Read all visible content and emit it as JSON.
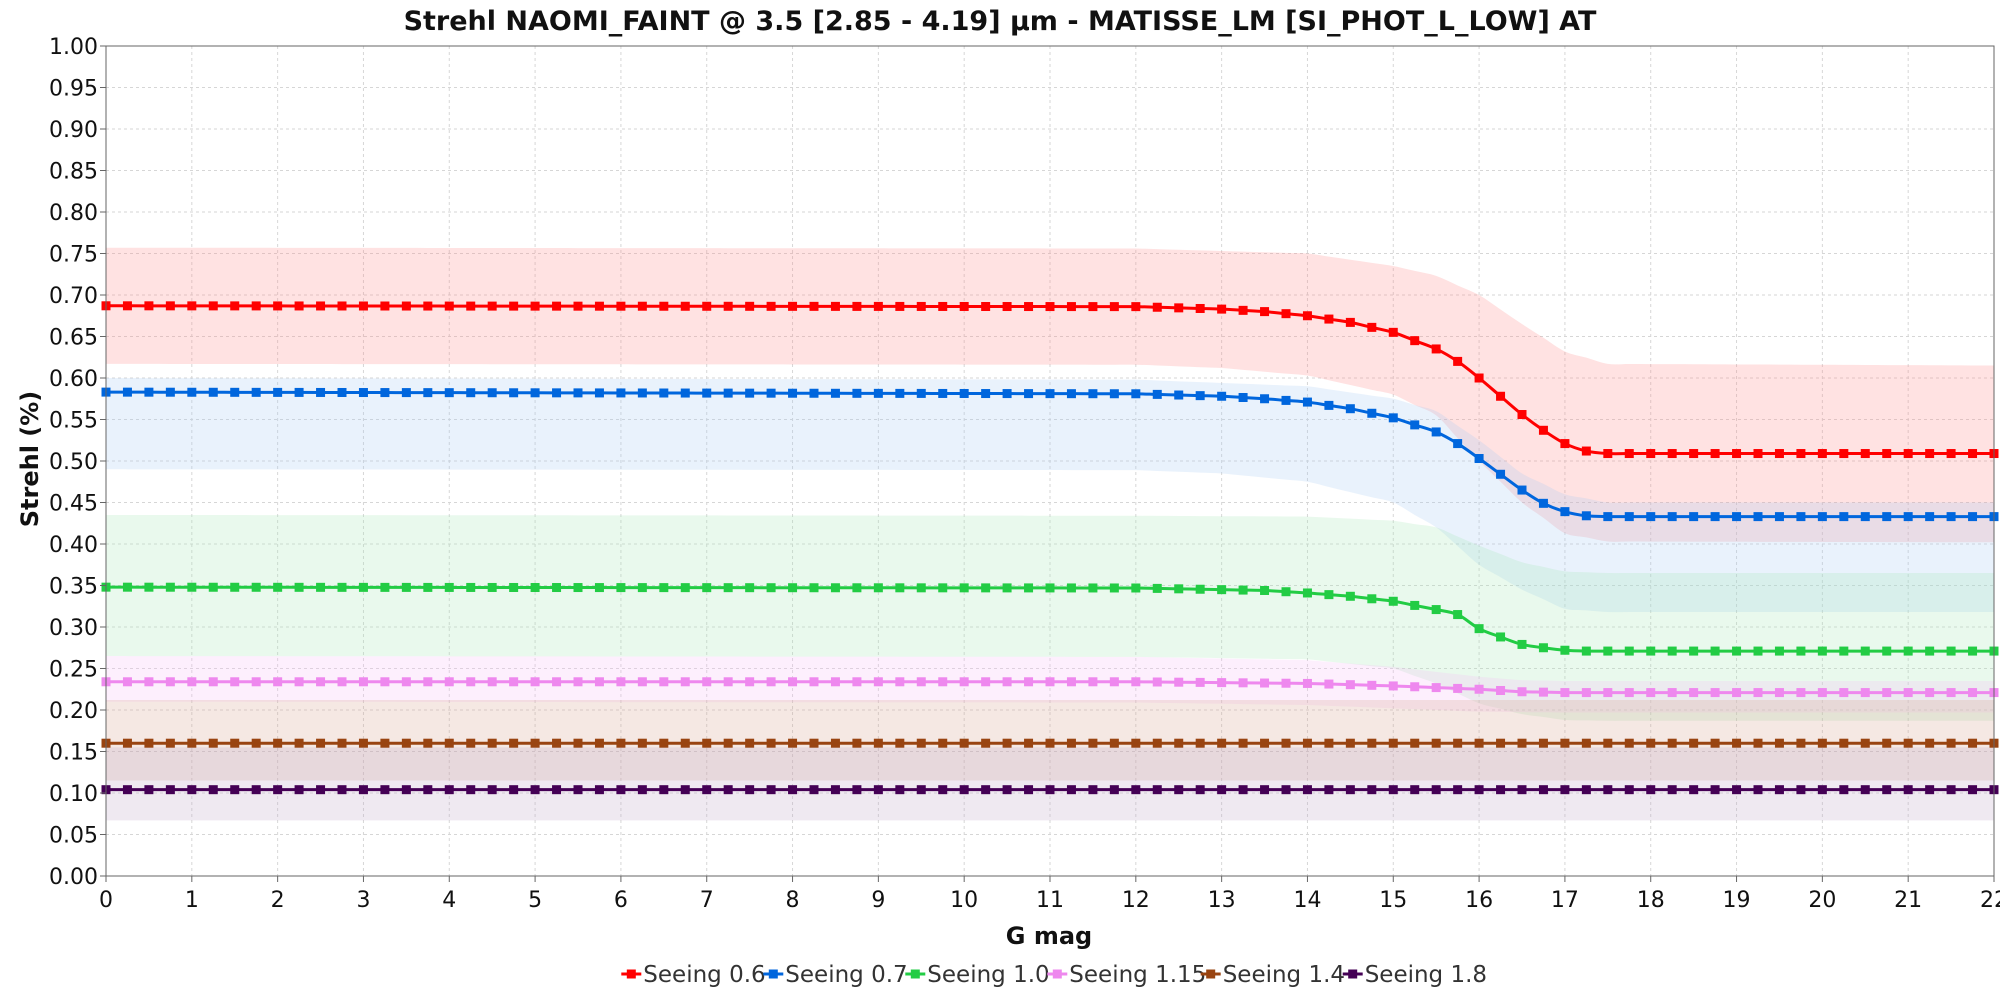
{
  "chart_data": {
    "type": "line",
    "title": "Strehl NAOMI_FAINT @ 3.5 [2.85 - 4.19] µm - MATISSE_LM [SI_PHOT_L_LOW] AT",
    "xlabel": "G mag",
    "ylabel": "Strehl (%)",
    "xlim": [
      0,
      22
    ],
    "ylim": [
      0,
      1
    ],
    "x_ticks": [
      "0",
      "1",
      "2",
      "3",
      "4",
      "5",
      "6",
      "7",
      "8",
      "9",
      "10",
      "11",
      "12",
      "13",
      "14",
      "15",
      "16",
      "17",
      "18",
      "19",
      "20",
      "21",
      "22"
    ],
    "y_ticks": [
      "0.00",
      "0.05",
      "0.10",
      "0.15",
      "0.20",
      "0.25",
      "0.30",
      "0.35",
      "0.40",
      "0.45",
      "0.50",
      "0.55",
      "0.60",
      "0.65",
      "0.70",
      "0.75",
      "0.80",
      "0.85",
      "0.90",
      "0.95",
      "1.00"
    ],
    "grid": true,
    "legend_position": "bottom",
    "marker_step": 0.25,
    "series": [
      {
        "name": "Seeing 0.6",
        "color": "#ff0000",
        "band_color": "#ff8a8a",
        "points": [
          [
            0,
            0.687
          ],
          [
            12,
            0.686
          ],
          [
            13,
            0.683
          ],
          [
            13.5,
            0.68
          ],
          [
            14,
            0.675
          ],
          [
            14.5,
            0.667
          ],
          [
            15,
            0.655
          ],
          [
            15.5,
            0.635
          ],
          [
            15.75,
            0.62
          ],
          [
            16,
            0.6
          ],
          [
            16.25,
            0.578
          ],
          [
            16.5,
            0.556
          ],
          [
            16.75,
            0.537
          ],
          [
            17,
            0.521
          ],
          [
            17.25,
            0.512
          ],
          [
            17.5,
            0.509
          ],
          [
            22,
            0.509
          ]
        ],
        "band_upper": [
          [
            0,
            0.757
          ],
          [
            12,
            0.756
          ],
          [
            14,
            0.75
          ],
          [
            15,
            0.735
          ],
          [
            15.5,
            0.723
          ],
          [
            16,
            0.7
          ],
          [
            16.5,
            0.665
          ],
          [
            17,
            0.632
          ],
          [
            17.5,
            0.617
          ],
          [
            22,
            0.615
          ]
        ],
        "band_lower": [
          [
            0,
            0.617
          ],
          [
            12,
            0.616
          ],
          [
            13,
            0.612
          ],
          [
            14,
            0.603
          ],
          [
            15,
            0.58
          ],
          [
            15.5,
            0.555
          ],
          [
            16,
            0.5
          ],
          [
            16.5,
            0.45
          ],
          [
            17,
            0.413
          ],
          [
            17.5,
            0.403
          ],
          [
            22,
            0.402
          ]
        ]
      },
      {
        "name": "Seeing 0.7",
        "color": "#0066dd",
        "band_color": "#a8cdf5",
        "points": [
          [
            0,
            0.583
          ],
          [
            12,
            0.581
          ],
          [
            13,
            0.578
          ],
          [
            13.5,
            0.575
          ],
          [
            14,
            0.571
          ],
          [
            14.5,
            0.563
          ],
          [
            15,
            0.552
          ],
          [
            15.5,
            0.535
          ],
          [
            15.75,
            0.521
          ],
          [
            16,
            0.503
          ],
          [
            16.25,
            0.484
          ],
          [
            16.5,
            0.465
          ],
          [
            16.75,
            0.449
          ],
          [
            17,
            0.439
          ],
          [
            17.25,
            0.434
          ],
          [
            17.5,
            0.433
          ],
          [
            22,
            0.433
          ]
        ],
        "band_upper": [
          [
            0,
            0.6
          ],
          [
            12,
            0.598
          ],
          [
            14,
            0.59
          ],
          [
            15,
            0.575
          ],
          [
            15.5,
            0.56
          ],
          [
            16,
            0.525
          ],
          [
            16.5,
            0.485
          ],
          [
            17,
            0.46
          ],
          [
            17.5,
            0.45
          ],
          [
            22,
            0.45
          ]
        ],
        "band_lower": [
          [
            0,
            0.49
          ],
          [
            12,
            0.489
          ],
          [
            13,
            0.485
          ],
          [
            14,
            0.475
          ],
          [
            15,
            0.45
          ],
          [
            15.5,
            0.42
          ],
          [
            16,
            0.375
          ],
          [
            16.5,
            0.345
          ],
          [
            17,
            0.322
          ],
          [
            17.5,
            0.318
          ],
          [
            22,
            0.318
          ]
        ]
      },
      {
        "name": "Seeing 1.0",
        "color": "#22cc44",
        "band_color": "#a8e8b6",
        "points": [
          [
            0,
            0.348
          ],
          [
            12,
            0.347
          ],
          [
            13,
            0.345
          ],
          [
            13.5,
            0.344
          ],
          [
            14,
            0.341
          ],
          [
            14.5,
            0.337
          ],
          [
            15,
            0.331
          ],
          [
            15.5,
            0.321
          ],
          [
            15.75,
            0.315
          ],
          [
            16,
            0.298
          ],
          [
            16.25,
            0.288
          ],
          [
            16.5,
            0.279
          ],
          [
            16.75,
            0.275
          ],
          [
            17,
            0.272
          ],
          [
            17.25,
            0.271
          ],
          [
            17.5,
            0.271
          ],
          [
            22,
            0.271
          ]
        ],
        "band_upper": [
          [
            0,
            0.435
          ],
          [
            12,
            0.434
          ],
          [
            14,
            0.433
          ],
          [
            15,
            0.428
          ],
          [
            15.5,
            0.42
          ],
          [
            16,
            0.398
          ],
          [
            16.5,
            0.378
          ],
          [
            17,
            0.367
          ],
          [
            17.5,
            0.365
          ],
          [
            22,
            0.365
          ]
        ],
        "band_lower": [
          [
            0,
            0.265
          ],
          [
            12,
            0.264
          ],
          [
            14,
            0.261
          ],
          [
            15,
            0.25
          ],
          [
            15.5,
            0.232
          ],
          [
            16,
            0.208
          ],
          [
            16.5,
            0.195
          ],
          [
            17,
            0.188
          ],
          [
            17.5,
            0.187
          ],
          [
            22,
            0.187
          ]
        ]
      },
      {
        "name": "Seeing 1.15",
        "color": "#ee88ee",
        "band_color": "#f6c0f6",
        "points": [
          [
            0,
            0.234
          ],
          [
            12,
            0.234
          ],
          [
            14,
            0.232
          ],
          [
            15,
            0.229
          ],
          [
            15.5,
            0.227
          ],
          [
            16,
            0.225
          ],
          [
            16.5,
            0.222
          ],
          [
            17,
            0.221
          ],
          [
            17.5,
            0.221
          ],
          [
            22,
            0.221
          ]
        ],
        "band_upper": [
          [
            0,
            0.265
          ],
          [
            12,
            0.264
          ],
          [
            14,
            0.26
          ],
          [
            15,
            0.252
          ],
          [
            15.5,
            0.246
          ],
          [
            16,
            0.24
          ],
          [
            16.5,
            0.236
          ],
          [
            17,
            0.235
          ],
          [
            22,
            0.235
          ]
        ],
        "band_lower": [
          [
            0,
            0.21
          ],
          [
            12,
            0.209
          ],
          [
            14,
            0.206
          ],
          [
            15,
            0.202
          ],
          [
            16,
            0.198
          ],
          [
            17,
            0.197
          ],
          [
            22,
            0.197
          ]
        ]
      },
      {
        "name": "Seeing 1.4",
        "color": "#994411",
        "band_color": "#d9a58f",
        "points": [
          [
            0,
            0.16
          ],
          [
            12,
            0.16
          ],
          [
            15,
            0.16
          ],
          [
            16,
            0.16
          ],
          [
            17,
            0.16
          ],
          [
            22,
            0.16
          ]
        ],
        "band_upper": [
          [
            0,
            0.212
          ],
          [
            22,
            0.212
          ]
        ],
        "band_lower": [
          [
            0,
            0.115
          ],
          [
            22,
            0.115
          ]
        ]
      },
      {
        "name": "Seeing 1.8",
        "color": "#440055",
        "band_color": "#bfa6c6",
        "points": [
          [
            0,
            0.104
          ],
          [
            22,
            0.104
          ]
        ],
        "band_upper": [
          [
            0,
            0.155
          ],
          [
            22,
            0.155
          ]
        ],
        "band_lower": [
          [
            0,
            0.067
          ],
          [
            22,
            0.067
          ]
        ]
      }
    ]
  }
}
